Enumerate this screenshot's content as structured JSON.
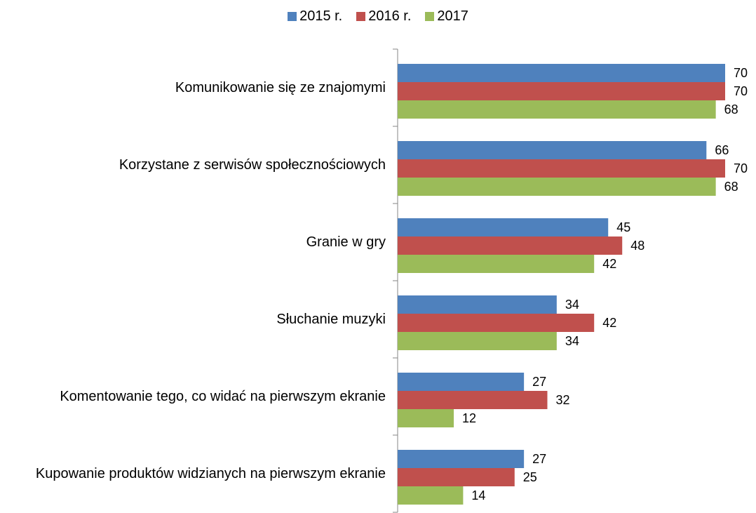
{
  "chart_data": {
    "type": "hbar",
    "categories": [
      "Komunikowanie się ze znajomymi",
      "Korzystane z serwisów społecznościowych",
      "Granie w gry",
      "Słuchanie muzyki",
      "Komentowanie tego, co  widać na pierwszym ekranie",
      "Kupowanie produktów widzianych na pierwszym ekranie"
    ],
    "series": [
      {
        "name": "2015 r.",
        "color": "#4f81bd",
        "values": [
          70,
          66,
          45,
          34,
          27,
          27
        ]
      },
      {
        "name": "2016 r.",
        "color": "#c0504d",
        "values": [
          70,
          70,
          48,
          42,
          32,
          25
        ]
      },
      {
        "name": "2017",
        "color": "#9bbb59",
        "values": [
          68,
          68,
          42,
          34,
          12,
          14
        ]
      }
    ],
    "xlim": [
      0,
      70
    ],
    "legend": "top"
  }
}
